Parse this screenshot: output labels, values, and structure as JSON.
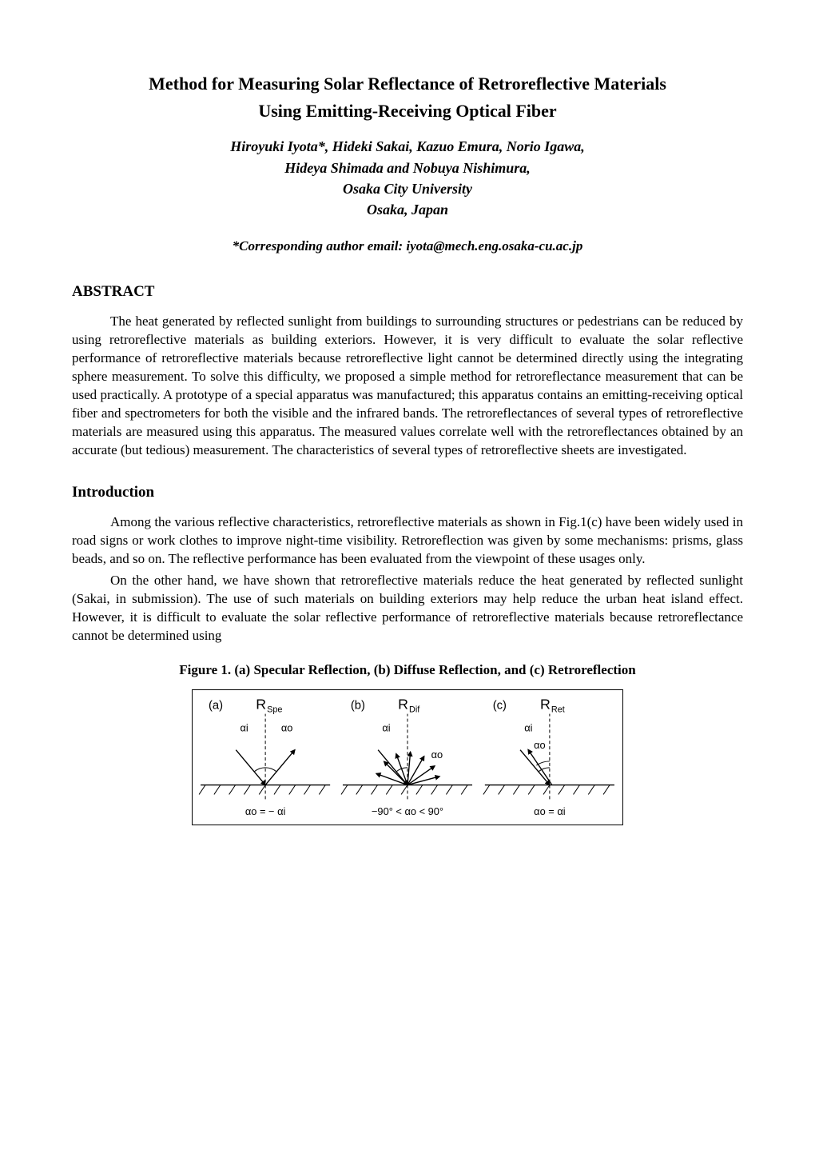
{
  "title_line1": "Method for Measuring Solar Reflectance of Retroreflective Materials",
  "title_line2": "Using Emitting-Receiving Optical Fiber",
  "authors_line1": "Hiroyuki Iyota*, Hideki Sakai, Kazuo Emura, Norio Igawa,",
  "authors_line2": "Hideya Shimada and Nobuya Nishimura,",
  "affil_line1": "Osaka City University",
  "affil_line2": "Osaka, Japan",
  "corresponding": "*Corresponding author email: iyota@mech.eng.osaka-cu.ac.jp",
  "abstract_head": "ABSTRACT",
  "abstract_text": "The heat generated by reflected sunlight from buildings to surrounding structures or pedestrians can be reduced by using retroreflective materials as building exteriors. However, it is very difficult to evaluate the solar reflective performance of retroreflective materials because retroreflective light cannot be determined directly using the integrating sphere measurement. To solve this difficulty, we proposed a simple method for retroreflectance measurement that can be used practically. A prototype of a special apparatus was manufactured; this apparatus contains an emitting-receiving optical fiber and spectrometers for both the visible and the infrared bands. The retroreflectances of several types of retroreflective materials are measured using this apparatus. The measured values correlate well with the retroreflectances obtained by an accurate (but tedious) measurement. The characteristics of several types of retroreflective sheets are investigated.",
  "intro_head": "Introduction",
  "intro_p1": "Among the various reflective characteristics, retroreflective materials as shown in Fig.1(c) have been widely used in road signs or work clothes to improve night-time visibility. Retroreflection was given by some mechanisms: prisms, glass beads, and so on. The reflective performance has been evaluated from the viewpoint of these usages only.",
  "intro_p2": "On the other hand, we have shown that retroreflective materials reduce the heat generated by reflected sunlight (Sakai, in submission). The use of such materials on building exteriors may help reduce the urban heat island effect. However, it is difficult to evaluate the solar reflective performance of retroreflective materials because retroreflectance cannot be determined using",
  "figure1": {
    "caption": "Figure 1. (a) Specular Reflection, (b) Diffuse Reflection, and (c) Retroreflection",
    "panels": [
      {
        "label": "(a)",
        "symbol_text": "R",
        "symbol_sub": "Spe",
        "normal_dash": "4,3",
        "hatch_count": 9,
        "rays": {
          "incident": {
            "angle_deg": -40,
            "length": 58
          },
          "reflected": {
            "angle_deg": 40,
            "length": 58
          }
        },
        "left_arc_label": "αi",
        "right_arc_label": "αo",
        "bottom_formula": "αo = − αi"
      },
      {
        "label": "(b)",
        "symbol_text": "R",
        "symbol_sub": "Dif",
        "normal_dash": "4,3",
        "hatch_count": 9,
        "rays": {
          "incident": {
            "angle_deg": -40,
            "length": 58
          },
          "scatter_angles": [
            -70,
            -45,
            -20,
            5,
            30,
            55,
            75
          ],
          "scatter_length": 42
        },
        "left_arc_label": "αi",
        "scatter_label": "αo",
        "bottom_formula": "−90° < αo < 90°"
      },
      {
        "label": "(c)",
        "symbol_text": "R",
        "symbol_sub": "Ret",
        "normal_dash": "4,3",
        "hatch_count": 9,
        "rays": {
          "incident": {
            "angle_deg": -40,
            "length": 58
          },
          "retro": {
            "angle_deg": -34,
            "length": 54
          }
        },
        "left_arc_label": "αi",
        "retro_label": "αo",
        "bottom_formula": "αo = αi"
      }
    ],
    "colors": {
      "stroke": "#000000",
      "background": "#ffffff"
    },
    "line_width": 1.4,
    "font_size_label": 15,
    "font_size_symbol": 18,
    "font_size_sub": 11,
    "font_size_greek": 13,
    "font_size_bottom": 13
  }
}
